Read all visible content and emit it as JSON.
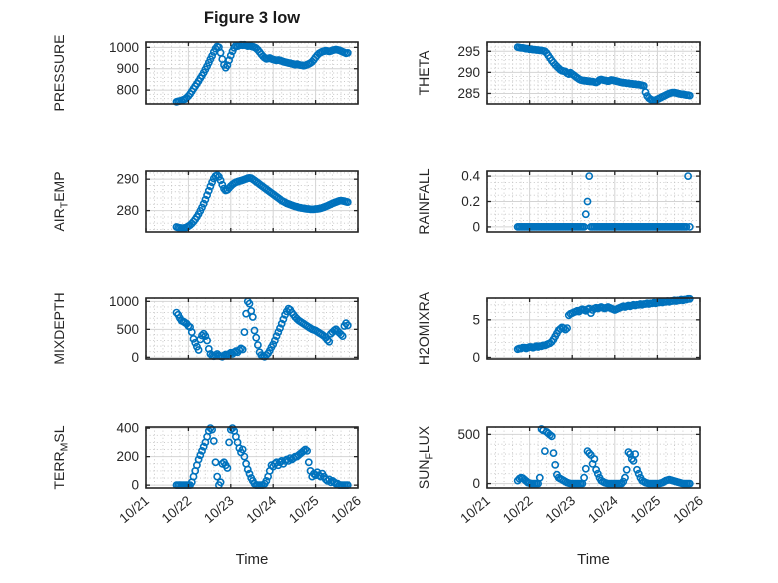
{
  "title": "Figure 3 low",
  "xlabel": "Time",
  "colors": {
    "marker": "#0072BD",
    "axis": "#262626",
    "grid_major": "#d4d4d4",
    "grid_minor": "#c2c2c2",
    "text": "#262626"
  },
  "x_axis": {
    "lim": [
      0,
      5
    ],
    "ticks": [
      0,
      1,
      2,
      3,
      4,
      5
    ],
    "tick_labels": [
      "10/21",
      "10/22",
      "10/23",
      "10/24",
      "10/25",
      "10/26"
    ],
    "minor_step": 0.2,
    "unit": "days after 10/21"
  },
  "chart_data": [
    {
      "id": "pressure",
      "type": "scatter",
      "row": 0,
      "col": 0,
      "ylabel": {
        "pre": "PRESSURE",
        "sub": "",
        "post": ""
      },
      "ylim": [
        735,
        1025
      ],
      "yticks": [
        800,
        900,
        1000
      ],
      "yminor": 20,
      "x_start": 0.72,
      "x_step": 0.04,
      "y": [
        745,
        747,
        749,
        751,
        754,
        758,
        764,
        772,
        782,
        794,
        806,
        818,
        830,
        842,
        855,
        868,
        882,
        897,
        912,
        928,
        944,
        960,
        978,
        994,
        1004,
        1000,
        975,
        945,
        918,
        905,
        916,
        940,
        962,
        982,
        998,
        1008,
        1006,
        1009,
        1012,
        1010,
        1012,
        1009,
        1006,
        1008,
        1005,
        1003,
        1000,
        996,
        988,
        978,
        968,
        958,
        951,
        946,
        948,
        950,
        946,
        943,
        941,
        939,
        941,
        939,
        936,
        933,
        931,
        929,
        927,
        926,
        923,
        921,
        919,
        921,
        919,
        917,
        916,
        914,
        916,
        919,
        922,
        927,
        933,
        942,
        953,
        963,
        971,
        976,
        980,
        982,
        985,
        983,
        981,
        983,
        986,
        988,
        990,
        988,
        986,
        983,
        979,
        976,
        972,
        974
      ]
    },
    {
      "id": "theta",
      "type": "scatter",
      "row": 0,
      "col": 1,
      "ylabel": {
        "pre": "THETA",
        "sub": "",
        "post": ""
      },
      "ylim": [
        282.5,
        297.2
      ],
      "yticks": [
        285,
        290,
        295
      ],
      "yminor": 1,
      "x_start": 0.72,
      "x_step": 0.04,
      "y": [
        296,
        295.9,
        295.8,
        295.8,
        295.7,
        295.6,
        295.6,
        295.5,
        295.5,
        295.4,
        295.4,
        295.3,
        295.3,
        295.2,
        295.2,
        295.1,
        295,
        294.6,
        294,
        293.4,
        292.8,
        292.3,
        291.8,
        291.4,
        291,
        290.6,
        290.4,
        290.3,
        290.2,
        289.8,
        289.6,
        289.9,
        289.6,
        289.3,
        289,
        288.7,
        288.4,
        288.2,
        288.1,
        288,
        288,
        287.9,
        287.9,
        287.8,
        287.8,
        287.7,
        287.6,
        287.8,
        288.2,
        288.3,
        288.2,
        288.1,
        288,
        287.9,
        288,
        288.2,
        288.1,
        288,
        287.9,
        287.8,
        287.7,
        287.6,
        287.5,
        287.5,
        287.4,
        287.4,
        287.3,
        287.3,
        287.2,
        287.2,
        287.1,
        287.1,
        287,
        286.9,
        286.8,
        285.3,
        284.4,
        283.9,
        283.6,
        283.4,
        283.3,
        283.4,
        283.6,
        283.8,
        284,
        284.2,
        284.4,
        284.6,
        284.8,
        285,
        285.1,
        285.2,
        285.2,
        285.1,
        285,
        284.9,
        284.8,
        284.8,
        284.7,
        284.6,
        284.6,
        284.5
      ]
    },
    {
      "id": "airtemp",
      "type": "scatter",
      "row": 1,
      "col": 0,
      "ylabel": {
        "pre": "AIR",
        "sub": "T",
        "post": "EMP"
      },
      "ylim": [
        273.2,
        292.6
      ],
      "yticks": [
        280,
        290
      ],
      "yminor": 2,
      "x_start": 0.72,
      "x_step": 0.04,
      "y": [
        274.8,
        274.6,
        274.5,
        274.4,
        274.4,
        274.5,
        274.7,
        275,
        275.4,
        275.9,
        276.5,
        277.2,
        278,
        278.9,
        279.9,
        281,
        282.2,
        283.5,
        284.9,
        286.3,
        287.7,
        289,
        290.2,
        291,
        291.3,
        290.8,
        289.6,
        288.2,
        287,
        286.4,
        286.6,
        287.2,
        287.8,
        288.3,
        288.7,
        289,
        289.2,
        289.4,
        289.5,
        289.7,
        289.9,
        290.1,
        290.3,
        290.4,
        290.3,
        290,
        289.6,
        289.2,
        288.8,
        288.4,
        288,
        287.6,
        287.2,
        286.8,
        286.4,
        286,
        285.6,
        285.2,
        284.8,
        284.4,
        284,
        283.6,
        283.2,
        282.9,
        282.6,
        282.3,
        282.1,
        281.9,
        281.7,
        281.5,
        281.3,
        281.2,
        281,
        280.9,
        280.8,
        280.7,
        280.6,
        280.5,
        280.5,
        280.4,
        280.4,
        280.4,
        280.5,
        280.5,
        280.6,
        280.7,
        280.9,
        281.1,
        281.3,
        281.5,
        281.8,
        282,
        282.3,
        282.5,
        282.7,
        282.9,
        283.1,
        283.2,
        283.1,
        283,
        282.8,
        282.7
      ]
    },
    {
      "id": "rainfall",
      "type": "scatter",
      "row": 1,
      "col": 1,
      "ylabel": {
        "pre": "RAINFALL",
        "sub": "",
        "post": ""
      },
      "ylim": [
        -0.04,
        0.44
      ],
      "yticks": [
        0,
        0.2,
        0.4
      ],
      "yminor": 0.05,
      "x_start": 0.72,
      "x_step": 0.04,
      "y": [
        0,
        0,
        0,
        0,
        0,
        0,
        0,
        0,
        0,
        0,
        0,
        0,
        0,
        0,
        0,
        0,
        0,
        0,
        0,
        0,
        0,
        0,
        0,
        0,
        0,
        0,
        0,
        0,
        0,
        0,
        0,
        0,
        0,
        0,
        0,
        0,
        0,
        0,
        0,
        0,
        0.1,
        0.2,
        0.4,
        0,
        0,
        0,
        0,
        0,
        0,
        0,
        0,
        0,
        0,
        0,
        0,
        0,
        0,
        0,
        0,
        0,
        0,
        0,
        0,
        0,
        0,
        0,
        0,
        0,
        0,
        0,
        0,
        0,
        0,
        0,
        0,
        0,
        0,
        0,
        0,
        0,
        0,
        0,
        0,
        0,
        0,
        0,
        0,
        0,
        0,
        0,
        0,
        0,
        0,
        0,
        0,
        0,
        0,
        0,
        0,
        0,
        0.4,
        0
      ]
    },
    {
      "id": "mixdepth",
      "type": "scatter",
      "row": 2,
      "col": 0,
      "ylabel": {
        "pre": "MIXDEPTH",
        "sub": "",
        "post": ""
      },
      "ylim": [
        -30,
        1060
      ],
      "yticks": [
        0,
        500,
        1000
      ],
      "yminor": 100,
      "x_start": 0.72,
      "x_step": 0.04,
      "y": [
        800,
        760,
        700,
        655,
        640,
        620,
        600,
        560,
        540,
        450,
        330,
        260,
        190,
        130,
        320,
        390,
        420,
        380,
        300,
        150,
        60,
        30,
        20,
        40,
        60,
        30,
        20,
        10,
        30,
        50,
        40,
        60,
        80,
        60,
        90,
        110,
        90,
        130,
        160,
        140,
        450,
        780,
        1000,
        960,
        830,
        720,
        480,
        350,
        220,
        90,
        40,
        20,
        10,
        40,
        70,
        120,
        180,
        230,
        300,
        380,
        450,
        520,
        600,
        680,
        760,
        820,
        870,
        850,
        800,
        760,
        720,
        690,
        660,
        640,
        620,
        600,
        580,
        560,
        540,
        520,
        500,
        490,
        480,
        460,
        440,
        420,
        400,
        380,
        350,
        310,
        280,
        420,
        450,
        480,
        500,
        470,
        440,
        410,
        380,
        560,
        610,
        570
      ]
    },
    {
      "id": "h2omixra",
      "type": "scatter",
      "row": 2,
      "col": 1,
      "ylabel": {
        "pre": "H2OMIXRA",
        "sub": "",
        "post": ""
      },
      "ylim": [
        -0.2,
        7.9
      ],
      "yticks": [
        0,
        5
      ],
      "yminor": 1,
      "x_start": 0.72,
      "x_step": 0.04,
      "y": [
        1.1,
        1.2,
        1.2,
        1.3,
        1.3,
        1.2,
        1.3,
        1.4,
        1.4,
        1.3,
        1.4,
        1.5,
        1.4,
        1.5,
        1.5,
        1.6,
        1.6,
        1.7,
        1.8,
        1.9,
        2.1,
        2.4,
        2.8,
        3.2,
        3.6,
        3.8,
        4,
        3.9,
        3.7,
        3.9,
        5.6,
        5.8,
        5.9,
        6,
        6.1,
        6.2,
        6.1,
        6.3,
        6.4,
        6.3,
        6.2,
        6.4,
        6.5,
        5.9,
        6.3,
        6.5,
        6.6,
        6.5,
        6.6,
        6.7,
        6.6,
        6.5,
        6.6,
        6.7,
        6.6,
        6.5,
        6.4,
        6.3,
        6.4,
        6.5,
        6.6,
        6.7,
        6.8,
        6.7,
        6.8,
        6.9,
        6.8,
        6.9,
        7,
        6.9,
        7,
        7,
        7.1,
        7,
        7.1,
        7.1,
        7.2,
        7.1,
        7.2,
        7.2,
        7.3,
        7.2,
        7.3,
        7.3,
        7.4,
        7.3,
        7.4,
        7.4,
        7.5,
        7.4,
        7.5,
        7.5,
        7.6,
        7.5,
        7.6,
        7.6,
        7.7,
        7.6,
        7.7,
        7.7,
        7.8,
        7.8
      ]
    },
    {
      "id": "terrmsl",
      "type": "scatter",
      "row": 3,
      "col": 0,
      "ylabel": {
        "pre": "TERR",
        "sub": "M",
        "post": "SL"
      },
      "ylim": [
        -20,
        408
      ],
      "yticks": [
        0,
        200,
        400
      ],
      "yminor": 50,
      "x_start": 0.72,
      "x_step": 0.04,
      "y": [
        0,
        0,
        0,
        0,
        0,
        0,
        0,
        0,
        0,
        20,
        60,
        100,
        140,
        180,
        210,
        240,
        270,
        300,
        340,
        380,
        400,
        390,
        310,
        160,
        60,
        0,
        20,
        150,
        160,
        140,
        120,
        300,
        390,
        400,
        380,
        340,
        300,
        260,
        230,
        250,
        200,
        150,
        110,
        80,
        50,
        30,
        10,
        0,
        0,
        0,
        0,
        0,
        10,
        30,
        60,
        100,
        140,
        130,
        150,
        160,
        140,
        160,
        170,
        150,
        170,
        180,
        170,
        190,
        180,
        190,
        200,
        200,
        210,
        220,
        230,
        240,
        250,
        240,
        160,
        100,
        60,
        80,
        70,
        90,
        70,
        60,
        80,
        60,
        40,
        30,
        40,
        20,
        30,
        20,
        10,
        10,
        0,
        0,
        0,
        0,
        0,
        0
      ]
    },
    {
      "id": "sunflux",
      "type": "scatter",
      "row": 3,
      "col": 1,
      "ylabel": {
        "pre": "SUN",
        "sub": "F",
        "post": "LUX"
      },
      "ylim": [
        -45,
        575
      ],
      "yticks": [
        0,
        500
      ],
      "yminor": 100,
      "x_start": 0.72,
      "x_step": 0.04,
      "y": [
        30,
        50,
        60,
        55,
        40,
        25,
        10,
        5,
        0,
        0,
        0,
        0,
        0,
        60,
        555,
        540,
        330,
        525,
        510,
        495,
        480,
        310,
        190,
        90,
        60,
        50,
        40,
        30,
        20,
        10,
        5,
        0,
        0,
        0,
        0,
        0,
        0,
        0,
        0,
        60,
        150,
        330,
        310,
        290,
        200,
        250,
        140,
        100,
        60,
        30,
        20,
        10,
        5,
        0,
        0,
        0,
        0,
        0,
        0,
        0,
        0,
        0,
        20,
        60,
        140,
        320,
        300,
        250,
        230,
        300,
        140,
        100,
        60,
        30,
        20,
        10,
        5,
        0,
        0,
        0,
        0,
        0,
        0,
        0,
        5,
        10,
        20,
        30,
        35,
        40,
        35,
        30,
        25,
        20,
        15,
        10,
        5,
        0,
        0,
        0,
        0,
        0
      ]
    }
  ]
}
